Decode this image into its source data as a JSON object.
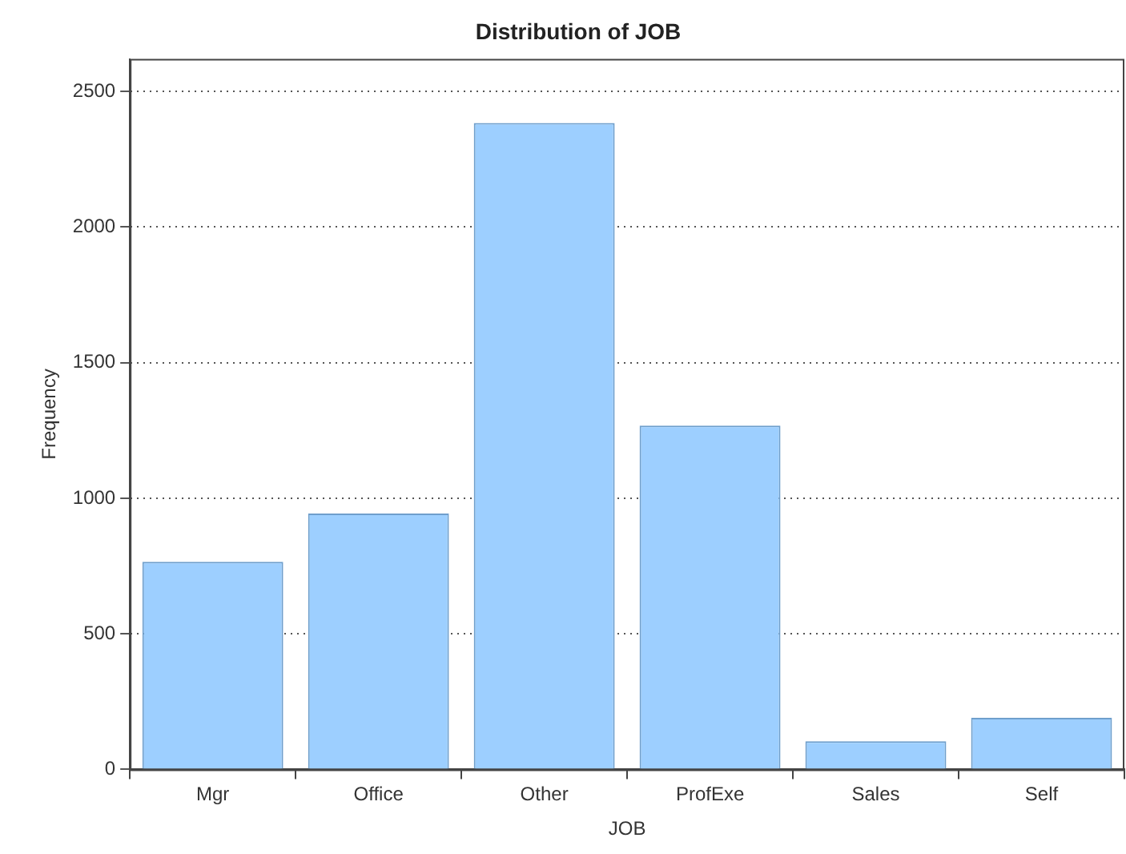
{
  "chart_data": {
    "type": "bar",
    "title": "Distribution of JOB",
    "xlabel": "JOB",
    "ylabel": "Frequency",
    "categories": [
      "Mgr",
      "Office",
      "Other",
      "ProfExe",
      "Sales",
      "Self"
    ],
    "values": [
      766,
      944,
      2384,
      1268,
      104,
      190
    ],
    "color": "#9dcfff",
    "ylim": [
      0,
      2620
    ],
    "yticks": [
      0,
      500,
      1000,
      1500,
      2000,
      2500
    ],
    "grid": "y",
    "legend": false
  }
}
